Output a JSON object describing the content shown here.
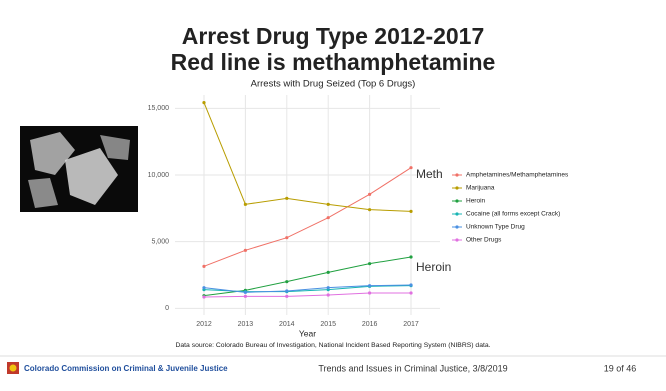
{
  "slide": {
    "title_lines": [
      "Arrest Drug Type 2012-2017",
      "Red line is methamphetamine"
    ]
  },
  "chart_data": {
    "type": "line",
    "title": "Arrests with Drug Seized (Top 6 Drugs)",
    "x_label": "Year",
    "x": [
      2012,
      2013,
      2014,
      2015,
      2016,
      2017
    ],
    "xlim": [
      2011.3,
      2017.7
    ],
    "xticks": [
      2012,
      2013,
      2014,
      2015,
      2016,
      2017
    ],
    "ylim": [
      -500,
      16000
    ],
    "yticks": [
      0,
      {
        "value": 5000,
        "label": "5,000"
      },
      {
        "value": 10000,
        "label": "10,000"
      },
      {
        "value": 15000,
        "label": "15,000"
      }
    ],
    "grid": true,
    "legend": "right",
    "series": [
      {
        "name": "Amphetamines/Methamphetamines",
        "color": "#f07167",
        "values": [
          3150,
          4350,
          5300,
          6800,
          8550,
          10550
        ]
      },
      {
        "name": "Marijuana",
        "color": "#b89d00",
        "values": [
          15430,
          7800,
          8250,
          7800,
          7400,
          7270
        ]
      },
      {
        "name": "Heroin",
        "color": "#20a040",
        "values": [
          950,
          1350,
          2000,
          2700,
          3350,
          3850
        ]
      },
      {
        "name": "Cocaine (all forms except Crack)",
        "color": "#18b4b4",
        "values": [
          1400,
          1250,
          1250,
          1400,
          1650,
          1700
        ]
      },
      {
        "name": "Unknown Type Drug",
        "color": "#4a90e2",
        "values": [
          1550,
          1200,
          1300,
          1550,
          1700,
          1750
        ]
      },
      {
        "name": "Other Drugs",
        "color": "#e070e0",
        "values": [
          850,
          900,
          900,
          1000,
          1150,
          1150
        ]
      }
    ],
    "annotations": [
      "Meth",
      "Heroin"
    ],
    "source": "Data source: Colorado Bureau of Investigation, National Incident Based Reporting System (NIBRS) data."
  },
  "footer": {
    "organization": "Colorado Commission on Criminal & Juvenile Justice",
    "center": "Trends and Issues in Criminal Justice, 3/8/2019",
    "page": "19 of 46"
  }
}
